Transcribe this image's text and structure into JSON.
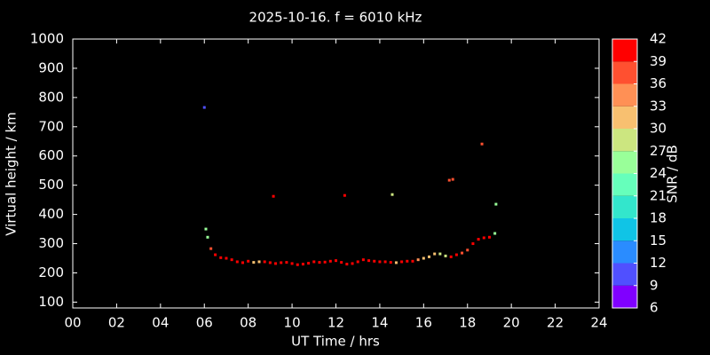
{
  "chart_data": {
    "type": "scatter",
    "title": "2025-10-16. f = 6010 kHz",
    "xlabel": "UT Time / hrs",
    "ylabel": "Virtual height / km",
    "xlim": [
      0,
      24
    ],
    "xticks": [
      {
        "value": 0,
        "label": "00"
      },
      {
        "value": 2,
        "label": "02"
      },
      {
        "value": 4,
        "label": "04"
      },
      {
        "value": 6,
        "label": "06"
      },
      {
        "value": 8,
        "label": "08"
      },
      10,
      12,
      14,
      16,
      18,
      20,
      22,
      24
    ],
    "ylim": [
      80,
      1000
    ],
    "yticks": [
      100,
      200,
      300,
      400,
      500,
      600,
      700,
      800,
      900,
      1000
    ],
    "colorbar": {
      "label": "SNR / dB",
      "ticks": [
        6,
        9,
        12,
        15,
        18,
        21,
        24,
        27,
        30,
        33,
        36,
        39,
        42
      ],
      "colors": [
        "#8000ff",
        "#5050ff",
        "#2a8cff",
        "#10c4e6",
        "#33e6cc",
        "#66ffbb",
        "#99ff99",
        "#cce680",
        "#f8c070",
        "#ff9055",
        "#ff5030",
        "#ff0000"
      ]
    },
    "x": [
      6.0,
      9.15,
      12.4,
      14.57,
      17.17,
      17.33,
      18.66,
      19.3,
      6.07,
      6.15,
      6.3,
      6.5,
      6.75,
      7.0,
      7.25,
      7.5,
      7.75,
      8.0,
      8.25,
      8.5,
      8.75,
      9.0,
      9.25,
      9.5,
      9.75,
      10.0,
      10.25,
      10.5,
      10.75,
      11.0,
      11.25,
      11.5,
      11.75,
      12.0,
      12.25,
      12.5,
      12.75,
      13.0,
      13.25,
      13.5,
      13.75,
      14.0,
      14.25,
      14.5,
      14.75,
      15.0,
      15.25,
      15.5,
      15.75,
      16.0,
      16.25,
      16.5,
      16.75,
      17.0,
      17.25,
      17.5,
      17.75,
      18.0,
      18.25,
      18.5,
      18.75,
      19.0,
      19.25
    ],
    "y": [
      766,
      462,
      465,
      468,
      517,
      520,
      641,
      435,
      350,
      322,
      283,
      262,
      252,
      250,
      245,
      238,
      235,
      240,
      236,
      238,
      238,
      235,
      232,
      235,
      236,
      232,
      228,
      230,
      233,
      238,
      236,
      237,
      240,
      242,
      236,
      230,
      232,
      238,
      245,
      242,
      240,
      238,
      238,
      236,
      235,
      238,
      240,
      240,
      245,
      250,
      255,
      265,
      265,
      258,
      255,
      262,
      268,
      278,
      300,
      315,
      320,
      322,
      335
    ],
    "snr": [
      10,
      40,
      39,
      28,
      36,
      36,
      36,
      25,
      25,
      25,
      36,
      40,
      40,
      40,
      40,
      40,
      40,
      40,
      30,
      30,
      40,
      40,
      40,
      40,
      40,
      40,
      40,
      40,
      40,
      40,
      40,
      40,
      40,
      40,
      40,
      40,
      40,
      40,
      40,
      40,
      40,
      40,
      40,
      40,
      30,
      40,
      40,
      40,
      33,
      30,
      30,
      30,
      27,
      27,
      40,
      40,
      36,
      36,
      40,
      40,
      40,
      40,
      25
    ]
  }
}
